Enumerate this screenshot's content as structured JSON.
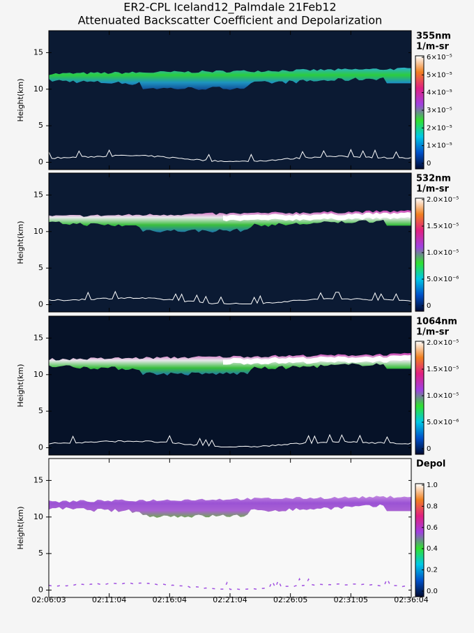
{
  "chart_data": [
    {
      "type": "heatmap",
      "title": [
        "ER2-CPL Iceland12_Palmdale 21Feb12",
        "Attenuated Backscatter Coefficient and Depolarization"
      ],
      "ylabel": "Height(km)",
      "ylim": [
        -1,
        18
      ],
      "yticks": [
        0,
        5,
        10,
        15
      ],
      "clabel": [
        "355nm",
        "1/m-sr"
      ],
      "clim": [
        0,
        6e-05
      ],
      "cticks": [
        0,
        {
          "value": 1e-05,
          "label": "1×10⁻⁵"
        },
        {
          "value": 2e-05,
          "label": "2×10⁻⁵"
        },
        {
          "value": 3e-05,
          "label": "3×10⁻⁵"
        },
        {
          "value": 4e-05,
          "label": "4×10⁻⁵"
        },
        {
          "value": 5e-05,
          "label": "5×10⁻⁵"
        },
        {
          "value": 6e-05,
          "label": "6×10⁻⁵"
        }
      ],
      "colormap": [
        "#000a30",
        "#0050c8",
        "#00c8e6",
        "#30e030",
        "#a040e0",
        "#e02080",
        "#f08020",
        "#ffffff"
      ],
      "background": "#0b1a33"
    },
    {
      "type": "heatmap",
      "ylabel": "Height(km)",
      "ylim": [
        -1,
        18
      ],
      "yticks": [
        0,
        5,
        10,
        15
      ],
      "clabel": [
        "532nm",
        "1/m-sr"
      ],
      "clim": [
        0,
        2e-05
      ],
      "cticks": [
        0,
        {
          "value": 5e-06,
          "label": "5.0×10⁻⁶"
        },
        {
          "value": 1e-05,
          "label": "1.0×10⁻⁵"
        },
        {
          "value": 1.5e-05,
          "label": "1.5×10⁻⁵"
        },
        {
          "value": 2e-05,
          "label": "2.0×10⁻⁵"
        }
      ],
      "colormap": [
        "#000a30",
        "#0050c8",
        "#00c8e6",
        "#30e030",
        "#a040e0",
        "#e02080",
        "#f08020",
        "#ffffff"
      ],
      "background": "#0b1a33"
    },
    {
      "type": "heatmap",
      "ylabel": "Height(km)",
      "ylim": [
        -1,
        18
      ],
      "yticks": [
        0,
        5,
        10,
        15
      ],
      "clabel": [
        "1064nm",
        "1/m-sr"
      ],
      "clim": [
        0,
        2e-05
      ],
      "cticks": [
        0,
        {
          "value": 5e-06,
          "label": "5.0×10⁻⁶"
        },
        {
          "value": 1e-05,
          "label": "1.0×10⁻⁵"
        },
        {
          "value": 1.5e-05,
          "label": "1.5×10⁻⁵"
        },
        {
          "value": 2e-05,
          "label": "2.0×10⁻⁵"
        }
      ],
      "colormap": [
        "#000a30",
        "#0050c8",
        "#00c8e6",
        "#30e030",
        "#a040e0",
        "#e02080",
        "#f08020",
        "#ffffff"
      ],
      "background": "#061228"
    },
    {
      "type": "heatmap",
      "ylabel": "Height(km)",
      "ylim": [
        -1,
        18
      ],
      "yticks": [
        0,
        5,
        10,
        15
      ],
      "clabel": [
        "Depol"
      ],
      "clim": [
        0,
        1
      ],
      "cticks": [
        {
          "value": 0,
          "label": "0.0"
        },
        0.2,
        0.4,
        0.6,
        0.8,
        {
          "value": 1,
          "label": "1.0"
        }
      ],
      "colormap": [
        "#000a30",
        "#0050c8",
        "#00c8e6",
        "#30e030",
        "#a040e0",
        "#e02080",
        "#f08020",
        "#ffffff"
      ],
      "background": "#f8f8f8",
      "xtick_labels": [
        "02:06:03",
        "02:11:04",
        "02:16:04",
        "02:21:04",
        "02:26:05",
        "02:31:05",
        "02:36:04"
      ]
    }
  ]
}
